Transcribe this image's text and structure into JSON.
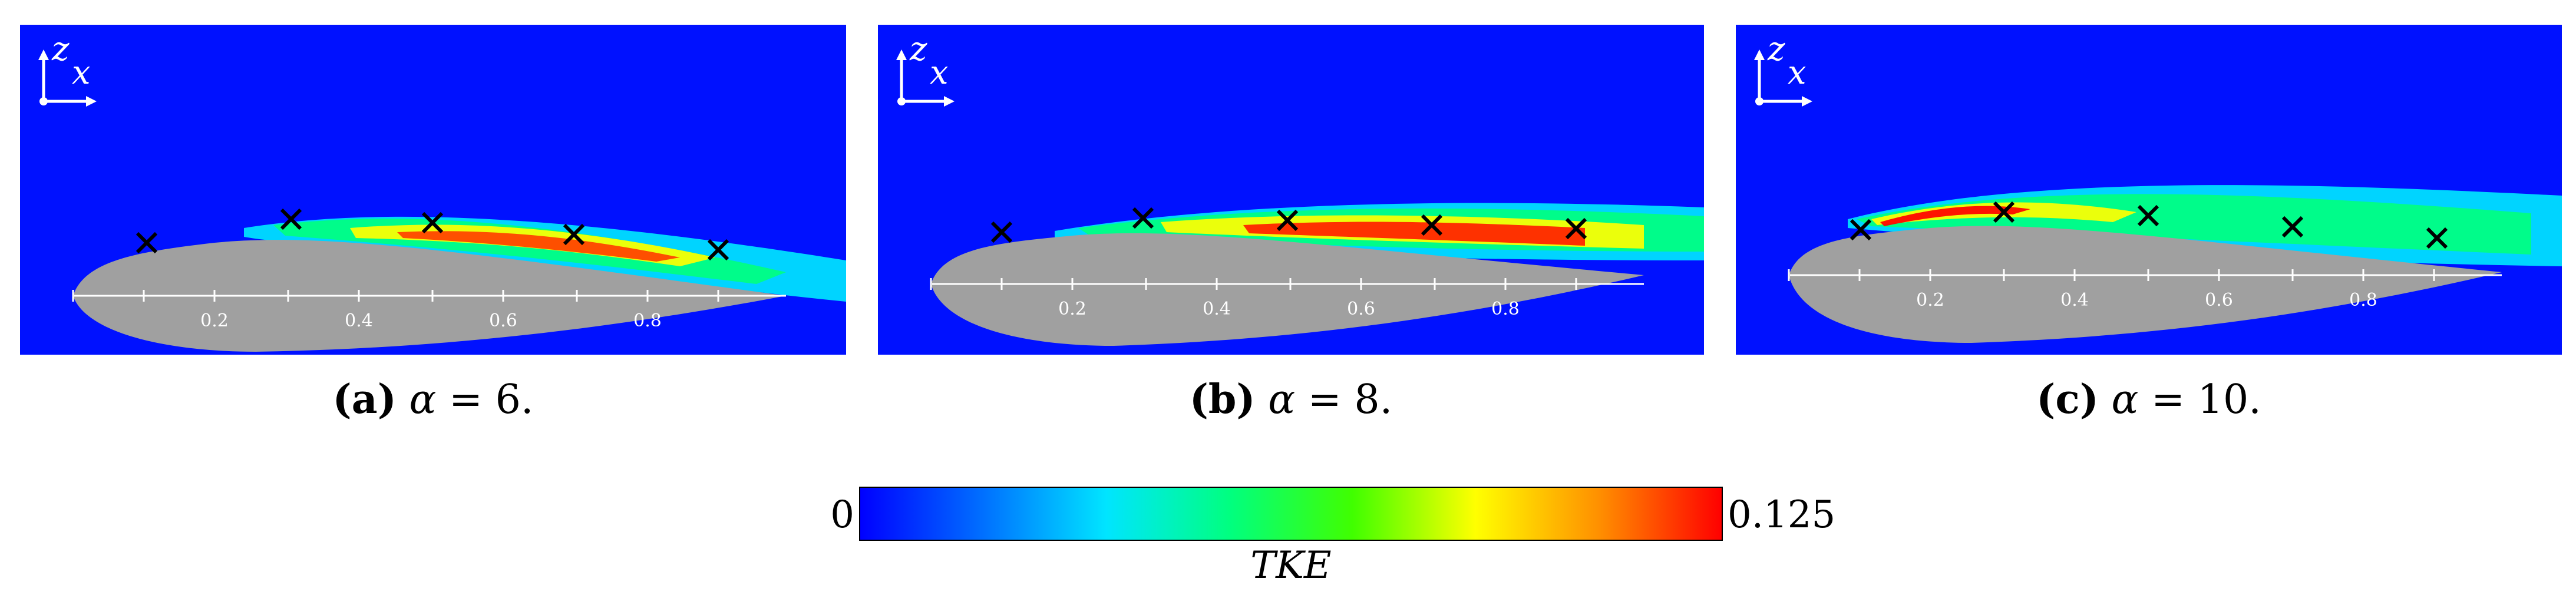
{
  "panels": [
    {
      "label": "(a)",
      "alpha_symbol": "α",
      "equals": "=",
      "alpha_value": "6."
    },
    {
      "label": "(b)",
      "alpha_symbol": "α",
      "equals": "=",
      "alpha_value": "8."
    },
    {
      "label": "(c)",
      "alpha_symbol": "α",
      "equals": "=",
      "alpha_value": "10."
    }
  ],
  "axes": {
    "x": "x",
    "z": "z"
  },
  "chord_ticks": [
    "0.2",
    "0.4",
    "0.6",
    "0.8"
  ],
  "colorbar": {
    "min": "0",
    "max": "0.125",
    "label": "TKE",
    "colors": [
      "#0000ff",
      "#0070ff",
      "#00e5ff",
      "#00ff80",
      "#40ff00",
      "#ffff00",
      "#ff9000",
      "#ff0000"
    ]
  },
  "colors": {
    "background": "#0011ff",
    "airfoil": "#a0a0a0"
  }
}
